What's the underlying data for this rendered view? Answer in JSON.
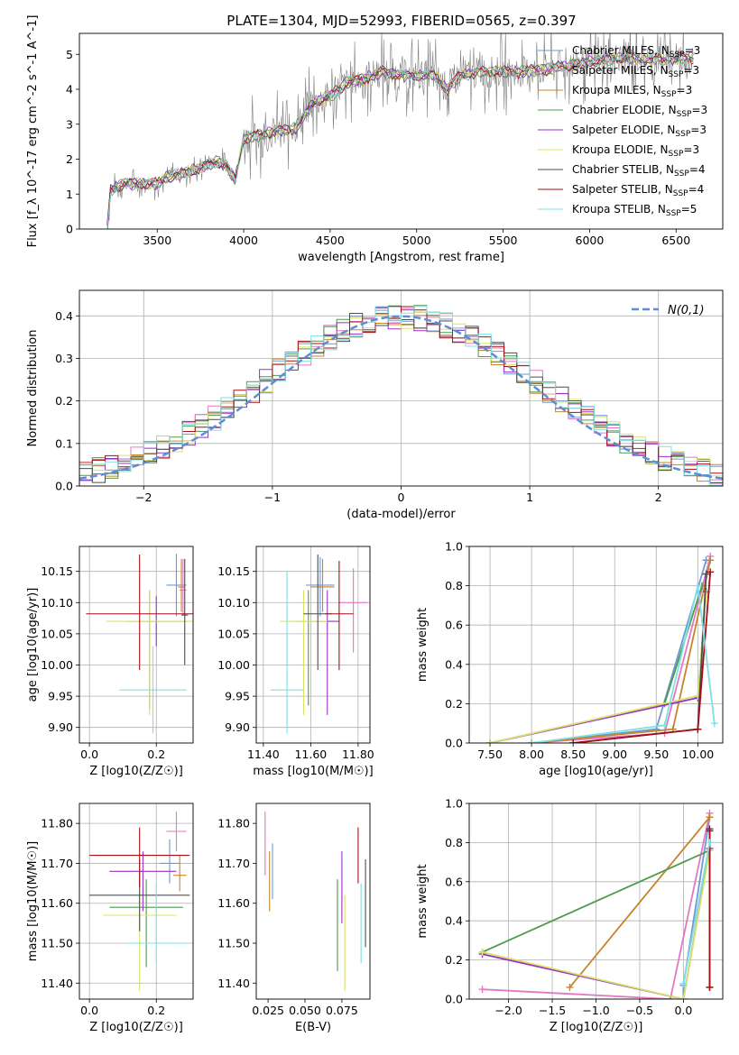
{
  "figure_title": "PLATE=1304, MJD=52993, FIBERID=0565, z=0.397",
  "chart_data": [
    {
      "name": "spectrum",
      "type": "line",
      "xlabel": "wavelength [Angstrom, rest frame]",
      "ylabel": "Flux [f_λ 10^-17 erg cm^-2 s^-1 A^-1]",
      "xlim": [
        3050,
        6770
      ],
      "ylim": [
        0,
        5.6
      ],
      "xticks": [
        3500,
        4000,
        4500,
        5000,
        5500,
        6000,
        6500
      ],
      "yticks": [
        0,
        1,
        2,
        3,
        4,
        5
      ],
      "data_color": "#808080",
      "data_start": 3210,
      "model_envelope": [
        {
          "x": 3210,
          "y": 0.0
        },
        {
          "x": 3230,
          "y": 1.1
        },
        {
          "x": 3300,
          "y": 1.3
        },
        {
          "x": 3400,
          "y": 1.3
        },
        {
          "x": 3500,
          "y": 1.3
        },
        {
          "x": 3560,
          "y": 1.5
        },
        {
          "x": 3650,
          "y": 1.6
        },
        {
          "x": 3750,
          "y": 1.75
        },
        {
          "x": 3850,
          "y": 1.95
        },
        {
          "x": 3900,
          "y": 1.8
        },
        {
          "x": 3950,
          "y": 1.4
        },
        {
          "x": 4000,
          "y": 2.6
        },
        {
          "x": 4100,
          "y": 2.7
        },
        {
          "x": 4200,
          "y": 2.8
        },
        {
          "x": 4300,
          "y": 2.9
        },
        {
          "x": 4400,
          "y": 3.6
        },
        {
          "x": 4500,
          "y": 3.8
        },
        {
          "x": 4600,
          "y": 4.2
        },
        {
          "x": 4700,
          "y": 4.3
        },
        {
          "x": 4800,
          "y": 4.5
        },
        {
          "x": 4900,
          "y": 4.4
        },
        {
          "x": 5000,
          "y": 4.4
        },
        {
          "x": 5100,
          "y": 4.4
        },
        {
          "x": 5180,
          "y": 4.0
        },
        {
          "x": 5250,
          "y": 4.4
        },
        {
          "x": 5400,
          "y": 4.5
        },
        {
          "x": 5600,
          "y": 4.5
        },
        {
          "x": 5800,
          "y": 4.6
        },
        {
          "x": 6000,
          "y": 4.8
        },
        {
          "x": 6200,
          "y": 4.9
        },
        {
          "x": 6400,
          "y": 4.85
        },
        {
          "x": 6600,
          "y": 4.9
        }
      ],
      "legend": [
        {
          "label": "Chabrier MILES, N_SSP=3",
          "base": "Chabrier MILES, N",
          "sub": "SSP",
          "suffix": "=3",
          "color": "#6a9ad6"
        },
        {
          "label": "Salpeter MILES, N_SSP=3",
          "base": "Salpeter MILES, N",
          "sub": "SSP",
          "suffix": "=3",
          "color": "#e377c2"
        },
        {
          "label": "Kroupa MILES, N_SSP=3",
          "base": "Kroupa MILES, N",
          "sub": "SSP",
          "suffix": "=3",
          "color": "#c7842a"
        },
        {
          "label": "Chabrier ELODIE, N_SSP=3",
          "base": "Chabrier ELODIE, N",
          "sub": "SSP",
          "suffix": "=3",
          "color": "#4f9a4f"
        },
        {
          "label": "Salpeter ELODIE, N_SSP=3",
          "base": "Salpeter ELODIE, N",
          "sub": "SSP",
          "suffix": "=3",
          "color": "#9b30c7"
        },
        {
          "label": "Kroupa ELODIE, N_SSP=3",
          "base": "Kroupa ELODIE, N",
          "sub": "SSP",
          "suffix": "=3",
          "color": "#d8e36a"
        },
        {
          "label": "Chabrier STELIB, N_SSP=4",
          "base": "Chabrier STELIB, N",
          "sub": "SSP",
          "suffix": "=4",
          "color": "#4d4d4d"
        },
        {
          "label": "Salpeter STELIB, N_SSP=4",
          "base": "Salpeter STELIB, N",
          "sub": "SSP",
          "suffix": "=4",
          "color": "#a50f15"
        },
        {
          "label": "Kroupa STELIB, N_SSP=5",
          "base": "Kroupa STELIB, N",
          "sub": "SSP",
          "suffix": "=5",
          "color": "#7ee0e0"
        }
      ],
      "legend_placement": "right",
      "grid": false
    },
    {
      "name": "residuals",
      "type": "histogram",
      "xlabel": "(data-model)/error",
      "ylabel": "Normed distribution",
      "xlim": [
        -2.5,
        2.5
      ],
      "ylim": [
        0,
        0.46
      ],
      "xticks": [
        -2,
        -1,
        0,
        1,
        2
      ],
      "yticks": [
        0.0,
        0.1,
        0.2,
        0.3,
        0.4
      ],
      "bin_width": 0.1,
      "grid": true,
      "legend": [
        {
          "label": "N(0,1)",
          "color": "#5b8ed6",
          "style": "dashed"
        }
      ],
      "legend_placement": "top-right"
    },
    {
      "name": "age-vs-Z",
      "type": "errorbar",
      "xlabel": "Z [log10(Z/Z☉)]",
      "ylabel": "age [log10(age/yr)]",
      "xlim": [
        -0.03,
        0.31
      ],
      "ylim": [
        9.875,
        10.19
      ],
      "xticks": [
        0.0,
        0.2
      ],
      "yticks": [
        9.9,
        9.95,
        10.0,
        10.05,
        10.1,
        10.15
      ],
      "grid": true,
      "points": [
        {
          "series": "Chabrier MILES",
          "x": 0.26,
          "xerr": 0.03,
          "y": 10.128,
          "yerr": [
            0.05,
            0.05
          ]
        },
        {
          "series": "Salpeter MILES",
          "x": 0.28,
          "xerr": 0.01,
          "y": 10.12,
          "yerr": [
            0.04,
            0.05
          ]
        },
        {
          "series": "Kroupa MILES",
          "x": 0.275,
          "xerr": 0.01,
          "y": 10.125,
          "yerr": [
            0.04,
            0.045
          ]
        },
        {
          "series": "Chabrier ELODIE",
          "x": 0.18,
          "xerr": 0.01,
          "y": 10.07,
          "yerr": [
            0.14,
            0.05
          ]
        },
        {
          "series": "Salpeter ELODIE",
          "x": 0.2,
          "xerr": 0.09,
          "y": 10.07,
          "yerr": [
            0.04,
            0.04
          ]
        },
        {
          "series": "Kroupa ELODIE",
          "x": 0.18,
          "xerr": 0.13,
          "y": 10.07,
          "yerr": [
            0.15,
            0.05
          ]
        },
        {
          "series": "Chabrier STELIB",
          "x": 0.285,
          "xerr": 0.01,
          "y": 10.08,
          "yerr": [
            0.08,
            0.09
          ]
        },
        {
          "series": "Salpeter STELIB",
          "x": 0.15,
          "xerr": 0.16,
          "y": 10.082,
          "yerr": [
            0.09,
            0.095
          ]
        },
        {
          "series": "Kroupa STELIB",
          "x": 0.19,
          "xerr": 0.1,
          "y": 9.96,
          "yerr": [
            0.07,
            0.07
          ]
        }
      ]
    },
    {
      "name": "age-vs-mass",
      "type": "errorbar",
      "xlabel": "mass [log10(M/M☉)]",
      "ylabel": "",
      "xlim": [
        11.37,
        11.85
      ],
      "ylim": [
        9.875,
        10.19
      ],
      "xticks": [
        11.4,
        11.6,
        11.8
      ],
      "yticks": [
        9.9,
        9.95,
        10.0,
        10.05,
        10.1,
        10.15
      ],
      "grid": true,
      "points": [
        {
          "series": "Chabrier MILES",
          "x": 11.64,
          "xerr": 0.06,
          "y": 10.128,
          "yerr": [
            0.05,
            0.045
          ]
        },
        {
          "series": "Salpeter MILES",
          "x": 11.78,
          "xerr": 0.06,
          "y": 10.1,
          "yerr": [
            0.08,
            0.055
          ]
        },
        {
          "series": "Kroupa MILES",
          "x": 11.65,
          "xerr": 0.05,
          "y": 10.125,
          "yerr": [
            0.04,
            0.045
          ]
        },
        {
          "series": "Chabrier ELODIE",
          "x": 11.59,
          "xerr": 0.06,
          "y": 10.07,
          "yerr": [
            0.135,
            0.05
          ]
        },
        {
          "series": "Salpeter ELODIE",
          "x": 11.67,
          "xerr": 0.05,
          "y": 10.07,
          "yerr": [
            0.15,
            0.05
          ]
        },
        {
          "series": "Kroupa ELODIE",
          "x": 11.57,
          "xerr": 0.1,
          "y": 10.07,
          "yerr": [
            0.15,
            0.05
          ]
        },
        {
          "series": "Chabrier STELIB",
          "x": 11.63,
          "xerr": 0.06,
          "y": 10.082,
          "yerr": [
            0.09,
            0.095
          ]
        },
        {
          "series": "Salpeter STELIB",
          "x": 11.72,
          "xerr": 0.06,
          "y": 10.082,
          "yerr": [
            0.09,
            0.085
          ]
        },
        {
          "series": "Kroupa STELIB",
          "x": 11.5,
          "xerr": 0.07,
          "y": 9.96,
          "yerr": [
            0.07,
            0.19
          ]
        }
      ]
    },
    {
      "name": "weight-vs-age",
      "type": "line",
      "xlabel": "age  [log10(age/yr)]",
      "ylabel": "mass weight",
      "xlim": [
        7.25,
        10.3
      ],
      "ylim": [
        0,
        1.0
      ],
      "xticks": [
        7.5,
        8.0,
        8.5,
        9.0,
        9.5,
        10.0
      ],
      "yticks": [
        0.0,
        0.2,
        0.4,
        0.6,
        0.8,
        1.0
      ],
      "grid": true,
      "series": [
        {
          "name": "Chabrier MILES",
          "points": [
            [
              8.0,
              0.0
            ],
            [
              9.5,
              0.07
            ],
            [
              10.1,
              0.93
            ]
          ]
        },
        {
          "name": "Salpeter MILES",
          "points": [
            [
              8.0,
              0.0
            ],
            [
              9.6,
              0.05
            ],
            [
              10.15,
              0.95
            ]
          ]
        },
        {
          "name": "Kroupa MILES",
          "points": [
            [
              8.0,
              0.0
            ],
            [
              9.7,
              0.07
            ],
            [
              10.15,
              0.93
            ]
          ]
        },
        {
          "name": "Chabrier ELODIE",
          "points": [
            [
              7.5,
              0.0
            ],
            [
              9.6,
              0.2
            ],
            [
              10.05,
              0.8
            ]
          ]
        },
        {
          "name": "Salpeter ELODIE",
          "points": [
            [
              7.5,
              0.0
            ],
            [
              10.0,
              0.23
            ],
            [
              10.1,
              0.77
            ]
          ]
        },
        {
          "name": "Kroupa ELODIE",
          "points": [
            [
              7.5,
              0.0
            ],
            [
              10.0,
              0.24
            ],
            [
              10.1,
              0.76
            ]
          ]
        },
        {
          "name": "Chabrier STELIB",
          "points": [
            [
              8.5,
              0.0
            ],
            [
              10.0,
              0.07
            ],
            [
              10.1,
              0.86
            ]
          ]
        },
        {
          "name": "Salpeter STELIB",
          "points": [
            [
              8.5,
              0.0
            ],
            [
              10.0,
              0.07
            ],
            [
              10.15,
              0.87
            ]
          ]
        },
        {
          "name": "Kroupa STELIB",
          "points": [
            [
              8.0,
              0.0
            ],
            [
              9.6,
              0.09
            ],
            [
              10.0,
              0.8
            ],
            [
              10.2,
              0.1
            ]
          ]
        }
      ]
    },
    {
      "name": "mass-vs-Z",
      "type": "errorbar",
      "xlabel": "Z [log10(Z/Z☉)]",
      "ylabel": "mass [log10(M/M☉)]",
      "xlim": [
        -0.03,
        0.31
      ],
      "ylim": [
        11.36,
        11.85
      ],
      "xticks": [
        0.0,
        0.2
      ],
      "yticks": [
        11.4,
        11.5,
        11.6,
        11.7,
        11.8
      ],
      "grid": true,
      "points": [
        {
          "series": "Chabrier MILES",
          "x": 0.24,
          "xerr": 0.03,
          "y": 11.7,
          "yerr": [
            0.05,
            0.06
          ]
        },
        {
          "series": "Salpeter MILES",
          "x": 0.26,
          "xerr": 0.03,
          "y": 11.78,
          "yerr": [
            0.05,
            0.05
          ]
        },
        {
          "series": "Kroupa MILES",
          "x": 0.27,
          "xerr": 0.02,
          "y": 11.67,
          "yerr": [
            0.04,
            0.05
          ]
        },
        {
          "series": "Chabrier ELODIE",
          "x": 0.17,
          "xerr": 0.11,
          "y": 11.59,
          "yerr": [
            0.15,
            0.07
          ]
        },
        {
          "series": "Salpeter ELODIE",
          "x": 0.16,
          "xerr": 0.1,
          "y": 11.68,
          "yerr": [
            0.1,
            0.05
          ]
        },
        {
          "series": "Kroupa ELODIE",
          "x": 0.15,
          "xerr": 0.11,
          "y": 11.57,
          "yerr": [
            0.19,
            0.08
          ]
        },
        {
          "series": "Chabrier STELIB",
          "x": 0.15,
          "xerr": 0.15,
          "y": 11.62,
          "yerr": [
            0.09,
            0.09
          ]
        },
        {
          "series": "Salpeter STELIB",
          "x": 0.15,
          "xerr": 0.15,
          "y": 11.72,
          "yerr": [
            0.08,
            0.07
          ]
        },
        {
          "series": "Kroupa STELIB",
          "x": 0.2,
          "xerr": 0.09,
          "y": 11.5,
          "yerr": [
            0.05,
            0.15
          ]
        }
      ]
    },
    {
      "name": "mass-vs-EBV",
      "type": "errorbar",
      "xlabel": "E(B-V)",
      "ylabel": "",
      "xlim": [
        0.017,
        0.094
      ],
      "ylim": [
        11.36,
        11.85
      ],
      "xticks": [
        0.025,
        0.05,
        0.075
      ],
      "yticks": [
        11.4,
        11.5,
        11.6,
        11.7,
        11.8
      ],
      "grid": false,
      "points": [
        {
          "series": "Chabrier MILES",
          "x": 0.028,
          "y": 11.68,
          "yerr": [
            0.07,
            0.07
          ]
        },
        {
          "series": "Salpeter MILES",
          "x": 0.023,
          "y": 11.76,
          "yerr": [
            0.09,
            0.07
          ]
        },
        {
          "series": "Kroupa MILES",
          "x": 0.026,
          "y": 11.65,
          "yerr": [
            0.07,
            0.08
          ]
        },
        {
          "series": "Chabrier ELODIE",
          "x": 0.072,
          "y": 11.55,
          "yerr": [
            0.12,
            0.11
          ]
        },
        {
          "series": "Salpeter ELODIE",
          "x": 0.075,
          "y": 11.64,
          "yerr": [
            0.09,
            0.09
          ]
        },
        {
          "series": "Kroupa ELODIE",
          "x": 0.077,
          "y": 11.5,
          "yerr": [
            0.12,
            0.12
          ]
        },
        {
          "series": "Chabrier STELIB",
          "x": 0.091,
          "y": 11.6,
          "yerr": [
            0.11,
            0.11
          ]
        },
        {
          "series": "Salpeter STELIB",
          "x": 0.086,
          "y": 11.72,
          "yerr": [
            0.07,
            0.07
          ]
        },
        {
          "series": "Kroupa STELIB",
          "x": 0.088,
          "y": 11.55,
          "yerr": [
            0.1,
            0.1
          ]
        }
      ]
    },
    {
      "name": "weight-vs-Z",
      "type": "line",
      "xlabel": "Z [log10(Z/Z☉)]",
      "ylabel": "mass weight",
      "xlim": [
        -2.45,
        0.45
      ],
      "ylim": [
        0,
        1.0
      ],
      "xticks": [
        -2.0,
        -1.5,
        -1.0,
        -0.5,
        0.0
      ],
      "yticks": [
        0.0,
        0.2,
        0.4,
        0.6,
        0.8,
        1.0
      ],
      "grid": true,
      "series": [
        {
          "name": "Chabrier MILES",
          "points": [
            [
              0.0,
              0.0
            ],
            [
              0.0,
              0.07
            ],
            [
              0.3,
              0.93
            ]
          ]
        },
        {
          "name": "Salpeter MILES",
          "points": [
            [
              -2.3,
              0.05
            ],
            [
              -0.15,
              0.0
            ],
            [
              0.3,
              0.95
            ]
          ]
        },
        {
          "name": "Kroupa MILES",
          "points": [
            [
              -1.3,
              0.06
            ],
            [
              0.3,
              0.93
            ]
          ]
        },
        {
          "name": "Chabrier ELODIE",
          "points": [
            [
              -2.3,
              0.24
            ],
            [
              0.3,
              0.76
            ]
          ]
        },
        {
          "name": "Salpeter ELODIE",
          "points": [
            [
              -2.3,
              0.23
            ],
            [
              0.0,
              0.0
            ],
            [
              0.3,
              0.77
            ]
          ]
        },
        {
          "name": "Kroupa ELODIE",
          "points": [
            [
              -2.3,
              0.24
            ],
            [
              0.0,
              0.0
            ],
            [
              0.3,
              0.76
            ]
          ]
        },
        {
          "name": "Chabrier STELIB",
          "points": [
            [
              0.3,
              0.06
            ],
            [
              0.3,
              0.87
            ]
          ]
        },
        {
          "name": "Salpeter STELIB",
          "points": [
            [
              0.3,
              0.06
            ],
            [
              0.3,
              0.86
            ]
          ]
        },
        {
          "name": "Kroupa STELIB",
          "points": [
            [
              0.0,
              0.08
            ],
            [
              0.3,
              0.8
            ]
          ]
        }
      ]
    }
  ]
}
